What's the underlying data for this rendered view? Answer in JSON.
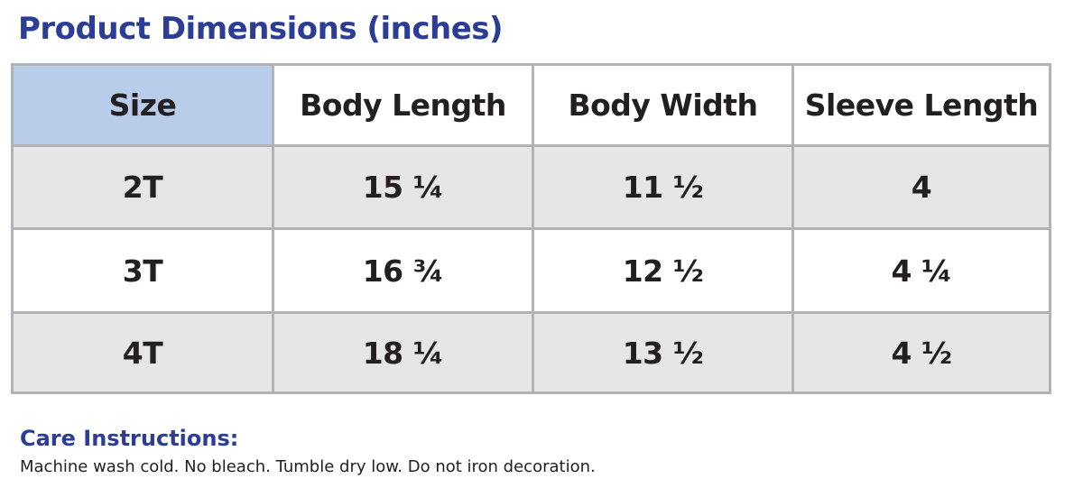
{
  "header": {
    "title": "Product Dimensions (inches)"
  },
  "table": {
    "columns": [
      "Size",
      "Body Length",
      "Body Width",
      "Sleeve Length"
    ],
    "rows": [
      [
        "2T",
        "15 ¼",
        "11 ½",
        "4"
      ],
      [
        "3T",
        "16 ¾",
        "12 ½",
        "4 ¼"
      ],
      [
        "4T",
        "18 ¼",
        "13 ½",
        "4 ½"
      ]
    ]
  },
  "care": {
    "heading": "Care Instructions:",
    "text": "Machine wash cold. No bleach. Tumble dry low. Do not iron decoration."
  }
}
